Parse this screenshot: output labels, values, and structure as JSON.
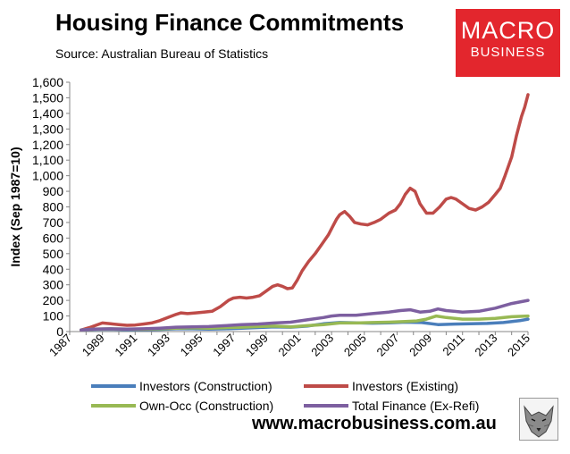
{
  "header": {
    "title": "Housing Finance Commitments",
    "source": "Source: Australian Bureau of Statistics"
  },
  "logo": {
    "line1": "MACRO",
    "line2": "BUSINESS"
  },
  "footer": {
    "url": "www.macrobusiness.com.au"
  },
  "chart_data": {
    "type": "line",
    "title": "Housing Finance Commitments",
    "subtitle": "Source: Australian Bureau of Statistics",
    "xlabel": "",
    "ylabel": "Index (Sep 1987=10)",
    "xlim": [
      1987,
      2015
    ],
    "ylim": [
      0,
      1600
    ],
    "yticks": [
      0,
      100,
      200,
      300,
      400,
      500,
      600,
      700,
      800,
      900,
      1000,
      1100,
      1200,
      1300,
      1400,
      1500,
      1600
    ],
    "ytick_labels": [
      "0",
      "100",
      "200",
      "300",
      "400",
      "500",
      "600",
      "700",
      "800",
      "900",
      "1,000",
      "1,100",
      "1,200",
      "1,300",
      "1,400",
      "1,500",
      "1,600"
    ],
    "xticks": [
      1987,
      1989,
      1991,
      1993,
      1995,
      1997,
      1999,
      2001,
      2003,
      2005,
      2007,
      2009,
      2011,
      2013,
      2015
    ],
    "xtick_labels": [
      "1987",
      "1989",
      "1991",
      "1993",
      "1995",
      "1997",
      "1999",
      "2001",
      "2003",
      "2005",
      "2007",
      "2009",
      "2011",
      "2013",
      "2015"
    ],
    "grid": false,
    "legend_position": "bottom",
    "series": [
      {
        "name": "Investors (Construction)",
        "color": "#4a7ebb",
        "x": [
          1987.7,
          1988.5,
          1989.5,
          1990.5,
          1991.5,
          1992.5,
          1993.5,
          1994.5,
          1995.5,
          1996.5,
          1997.5,
          1998.5,
          1999.5,
          2000.5,
          2001.5,
          2002.5,
          2003.5,
          2004.5,
          2005.5,
          2006.5,
          2007.5,
          2008.5,
          2009.5,
          2010.5,
          2011.5,
          2012.5,
          2013.5,
          2014.5,
          2015
        ],
        "values": [
          10,
          14,
          15,
          12,
          12,
          14,
          18,
          18,
          16,
          18,
          22,
          26,
          30,
          28,
          35,
          50,
          58,
          56,
          54,
          56,
          60,
          58,
          45,
          48,
          50,
          52,
          58,
          70,
          80
        ]
      },
      {
        "name": "Investors (Existing)",
        "color": "#be4b48",
        "x": [
          1987.7,
          1988.2,
          1988.6,
          1989.0,
          1989.5,
          1990.0,
          1990.5,
          1991.0,
          1991.5,
          1992.0,
          1992.5,
          1993.0,
          1993.5,
          1993.8,
          1994.2,
          1994.7,
          1995.2,
          1995.7,
          1996.2,
          1996.7,
          1997.0,
          1997.4,
          1997.8,
          1998.2,
          1998.6,
          1999.0,
          1999.4,
          1999.7,
          2000.0,
          2000.3,
          2000.6,
          2000.9,
          2001.2,
          2001.6,
          2002.0,
          2002.4,
          2002.8,
          2003.0,
          2003.3,
          2003.5,
          2003.8,
          2004.1,
          2004.4,
          2004.8,
          2005.2,
          2005.6,
          2006.0,
          2006.5,
          2006.9,
          2007.2,
          2007.5,
          2007.8,
          2008.1,
          2008.4,
          2008.8,
          2009.2,
          2009.6,
          2010.0,
          2010.3,
          2010.6,
          2011.0,
          2011.4,
          2011.8,
          2012.2,
          2012.6,
          2013.0,
          2013.3,
          2013.6,
          2014.0,
          2014.3,
          2014.6,
          2014.8,
          2015.0
        ],
        "values": [
          10,
          25,
          40,
          55,
          50,
          45,
          40,
          42,
          48,
          55,
          70,
          90,
          110,
          120,
          115,
          120,
          125,
          130,
          160,
          200,
          215,
          220,
          215,
          220,
          230,
          260,
          290,
          300,
          290,
          275,
          280,
          330,
          390,
          450,
          500,
          560,
          620,
          660,
          720,
          750,
          770,
          740,
          700,
          690,
          685,
          700,
          720,
          760,
          780,
          820,
          880,
          920,
          900,
          820,
          760,
          760,
          800,
          850,
          860,
          850,
          820,
          790,
          780,
          800,
          830,
          880,
          920,
          1000,
          1120,
          1260,
          1380,
          1440,
          1520
        ]
      },
      {
        "name": "Own-Occ (Construction)",
        "color": "#98b954",
        "x": [
          1987.7,
          1988.5,
          1989.5,
          1990.5,
          1991.5,
          1992.5,
          1993.5,
          1994.5,
          1995.5,
          1996.5,
          1997.5,
          1998.5,
          1999.5,
          2000.5,
          2001.5,
          2002.5,
          2003.5,
          2004.5,
          2005.5,
          2006.5,
          2007.5,
          2008.2,
          2008.8,
          2009.4,
          2010.0,
          2011.0,
          2012.0,
          2013.0,
          2014.0,
          2015.0
        ],
        "values": [
          10,
          16,
          18,
          16,
          15,
          18,
          22,
          24,
          22,
          25,
          28,
          32,
          35,
          30,
          38,
          45,
          55,
          55,
          58,
          60,
          65,
          68,
          80,
          100,
          90,
          80,
          80,
          85,
          95,
          100
        ]
      },
      {
        "name": "Total Finance (Ex-Refi)",
        "color": "#7d5fa0",
        "x": [
          1987.7,
          1988.5,
          1989.5,
          1990.5,
          1991.5,
          1992.5,
          1993.5,
          1994.5,
          1995.5,
          1996.5,
          1997.5,
          1998.5,
          1999.5,
          2000.5,
          2001.5,
          2002.5,
          2003.0,
          2003.5,
          2004.5,
          2005.5,
          2006.5,
          2007.2,
          2007.8,
          2008.4,
          2009.0,
          2009.5,
          2010.0,
          2011.0,
          2012.0,
          2013.0,
          2014.0,
          2015.0
        ],
        "values": [
          10,
          16,
          18,
          16,
          18,
          22,
          28,
          30,
          32,
          38,
          45,
          48,
          55,
          60,
          75,
          90,
          100,
          105,
          105,
          115,
          125,
          135,
          140,
          125,
          130,
          145,
          135,
          125,
          130,
          150,
          180,
          200
        ]
      }
    ]
  }
}
